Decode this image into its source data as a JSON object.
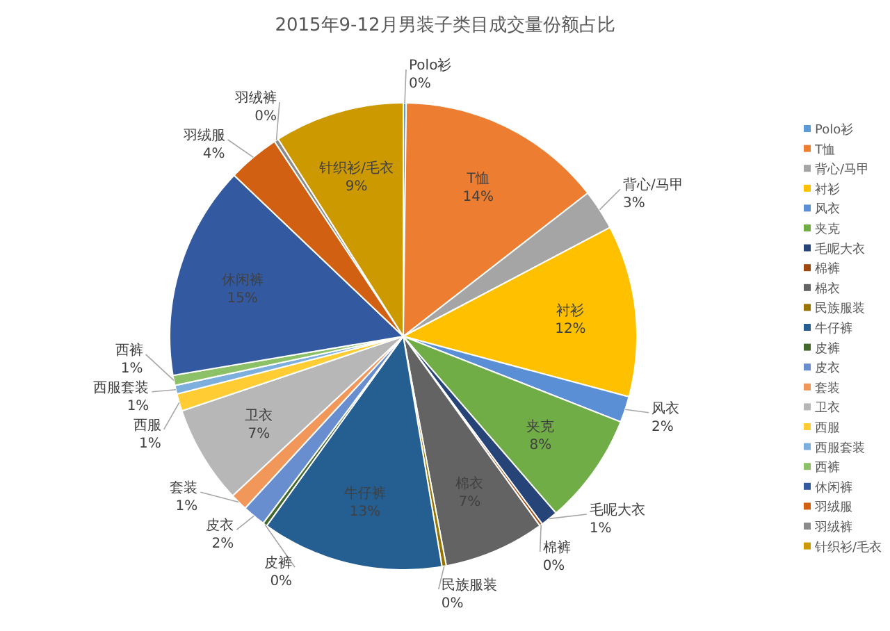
{
  "chart_data": {
    "type": "pie",
    "title": "2015年9-12月男装子类目成交量份额占比",
    "categories": [
      "Polo衫",
      "T恤",
      "背心/马甲",
      "衬衫",
      "风衣",
      "夹克",
      "毛呢大衣",
      "棉裤",
      "棉衣",
      "民族服装",
      "牛仔裤",
      "皮裤",
      "皮衣",
      "套装",
      "卫衣",
      "西服",
      "西服套装",
      "西裤",
      "休闲裤",
      "羽绒服",
      "羽绒裤",
      "针织衫/毛衣"
    ],
    "values": [
      0.2,
      14.3,
      2.8,
      11.9,
      1.8,
      7.7,
      1.2,
      0.2,
      7.0,
      0.3,
      12.6,
      0.3,
      1.6,
      1.2,
      6.8,
      1.2,
      0.6,
      0.7,
      14.8,
      3.6,
      0.3,
      9.0
    ],
    "value_labels": [
      "0%",
      "14%",
      "3%",
      "12%",
      "2%",
      "8%",
      "1%",
      "0%",
      "7%",
      "0%",
      "13%",
      "0%",
      "2%",
      "1%",
      "7%",
      "1%",
      "1%",
      "1%",
      "15%",
      "4%",
      "0%",
      "9%"
    ],
    "colors": [
      "#5b9bd5",
      "#ed7d31",
      "#a5a5a5",
      "#ffc000",
      "#5b8fd5",
      "#70ad47",
      "#264478",
      "#9e480e",
      "#636363",
      "#997300",
      "#255e91",
      "#43682b",
      "#698ed0",
      "#f1975a",
      "#b7b7b7",
      "#ffcd33",
      "#7cafdd",
      "#8cc168",
      "#335aa1",
      "#d26012",
      "#8b8b8b",
      "#cc9a00"
    ],
    "legend": "right"
  }
}
